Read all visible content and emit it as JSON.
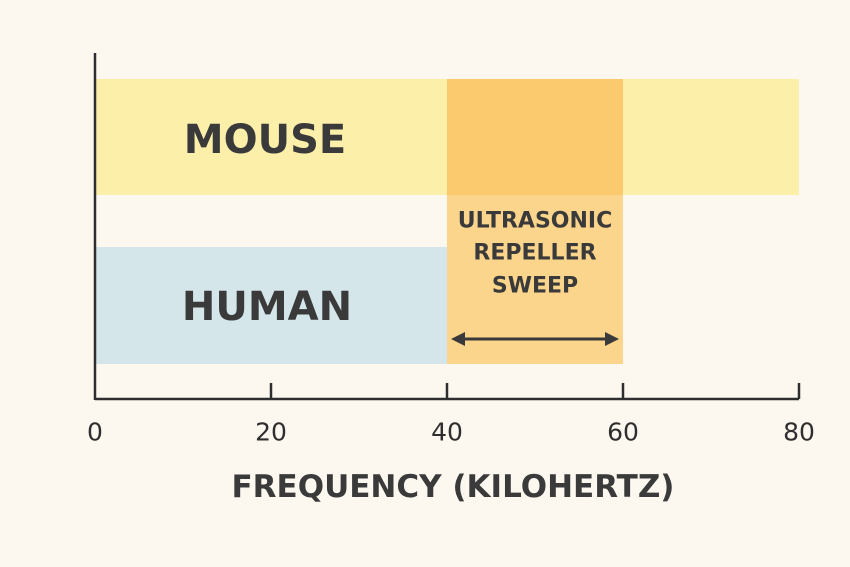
{
  "chart_data": {
    "type": "bar",
    "orientation": "horizontal",
    "xlabel": "FREQUENCY (KILOHERTZ)",
    "xlim": [
      0,
      80
    ],
    "xticks": [
      0,
      20,
      40,
      60,
      80
    ],
    "grid": false,
    "bars": [
      {
        "label": "MOUSE",
        "start": 0,
        "end": 80,
        "color": "#fcefaa"
      },
      {
        "label": "HUMAN",
        "start": 0,
        "end": 40,
        "color": "#d5e6ea"
      }
    ],
    "highlight": {
      "label_lines": [
        "ULTRASONIC",
        "REPELLER",
        "SWEEP"
      ],
      "start": 40,
      "end": 60,
      "color": "#fcd58c",
      "overlap_color": "#fbc96e"
    }
  }
}
